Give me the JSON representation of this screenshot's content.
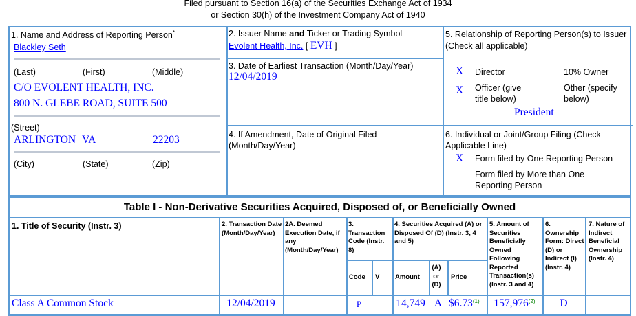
{
  "header": {
    "line1": "Filed pursuant to Section 16(a) of the Securities Exchange Act of 1934",
    "line2": "or Section 30(h) of the Investment Company Act of 1940"
  },
  "box1": {
    "label": "1. Name and Address of Reporting Person",
    "asterisk": "*",
    "name": "Blackley Seth",
    "last": "(Last)",
    "first": "(First)",
    "middle": "(Middle)",
    "addr1": "C/O EVOLENT HEALTH, INC.",
    "addr2": "800 N. GLEBE ROAD, SUITE 500",
    "street": "(Street)",
    "city_val": "ARLINGTON",
    "state_val": "VA",
    "zip_val": "22203",
    "city": "(City)",
    "state": "(State)",
    "zip": "(Zip)"
  },
  "box2": {
    "label_a": "2. Issuer Name ",
    "label_b": "and",
    "label_c": " Ticker or Trading Symbol",
    "issuer": "Evolent Health, Inc.",
    "ticker_open": " [ ",
    "ticker": "EVH",
    "ticker_close": " ]"
  },
  "box3": {
    "label": "3. Date of Earliest Transaction (Month/Day/Year)",
    "value": "12/04/2019"
  },
  "box4": {
    "label": "4. If Amendment, Date of Original Filed (Month/Day/Year)"
  },
  "box5": {
    "label": "5. Relationship of Reporting Person(s) to Issuer",
    "sub": "(Check all applicable)",
    "director_mark": "X",
    "director": "Director",
    "owner10": "10% Owner",
    "officer_mark": "X",
    "officer": "Officer (give title below)",
    "other": "Other (specify below)",
    "title": "President"
  },
  "box6": {
    "label": "6. Individual or Joint/Group Filing (Check Applicable Line)",
    "one_mark": "X",
    "one": "Form filed by One Reporting Person",
    "more": "Form filed by More than One Reporting Person"
  },
  "table1": {
    "title": "Table I - Non-Derivative Securities Acquired, Disposed of, or Beneficially Owned",
    "h1": "1. Title of Security (Instr. 3)",
    "h2": "2. Transaction Date (Month/Day/Year)",
    "h2a": "2A. Deemed Execution Date, if any (Month/Day/Year)",
    "h3": "3. Transaction Code (Instr. 8)",
    "h4": "4. Securities Acquired (A) or Disposed Of (D) (Instr. 3, 4 and 5)",
    "h5": "5. Amount of Securities Beneficially Owned Following Reported Transaction(s) (Instr. 3 and 4)",
    "h6": "6. Ownership Form: Direct (D) or Indirect (I) (Instr. 4)",
    "h7": "7. Nature of Indirect Beneficial Ownership (Instr. 4)",
    "code": "Code",
    "v": "V",
    "amount": "Amount",
    "aord": "(A) or (D)",
    "price": "Price",
    "row": {
      "title": "Class A Common Stock",
      "date": "12/04/2019",
      "code": "P",
      "amount": "14,749",
      "aord": "A",
      "price": "$6.73",
      "price_fn": "(1)",
      "owned": "157,976",
      "owned_fn": "(2)",
      "form": "D"
    }
  }
}
